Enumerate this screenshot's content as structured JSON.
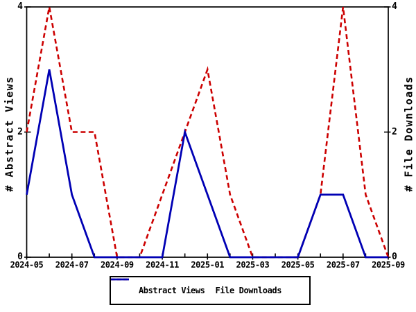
{
  "chart_data": {
    "type": "line",
    "x": [
      "2024-05",
      "2024-06",
      "2024-07",
      "2024-08",
      "2024-09",
      "2024-10",
      "2024-11",
      "2024-12",
      "2025-01",
      "2025-02",
      "2025-03",
      "2025-04",
      "2025-05",
      "2025-06",
      "2025-07",
      "2025-08",
      "2025-09"
    ],
    "series": [
      {
        "name": "Abstract Views",
        "values": [
          2,
          4,
          2,
          2,
          0,
          0,
          1,
          2,
          3,
          1,
          0,
          0,
          0,
          1,
          4,
          1,
          0
        ],
        "color": "#cc0000",
        "style": "dashed"
      },
      {
        "name": "File Downloads",
        "values": [
          1,
          3,
          1,
          0,
          0,
          0,
          0,
          2,
          1,
          0,
          0,
          0,
          0,
          1,
          1,
          0,
          0
        ],
        "color": "#0000b4",
        "style": "solid"
      }
    ],
    "title": "",
    "y_left_label": "# Abstract Views",
    "y_right_label": "# File Downloads",
    "ylim": [
      0,
      4
    ],
    "y_ticks": [
      "0",
      "2",
      "4"
    ],
    "x_tick_labels": [
      "2024-05",
      "2024-07",
      "2024-09",
      "2024-11",
      "2025-01",
      "2025-03",
      "2025-05",
      "2025-07",
      "2025-09"
    ],
    "x_labeled_every": 2,
    "grid": false,
    "legend_position": "bottom-center",
    "axis_color": "#000000",
    "background": "#ffffff"
  }
}
